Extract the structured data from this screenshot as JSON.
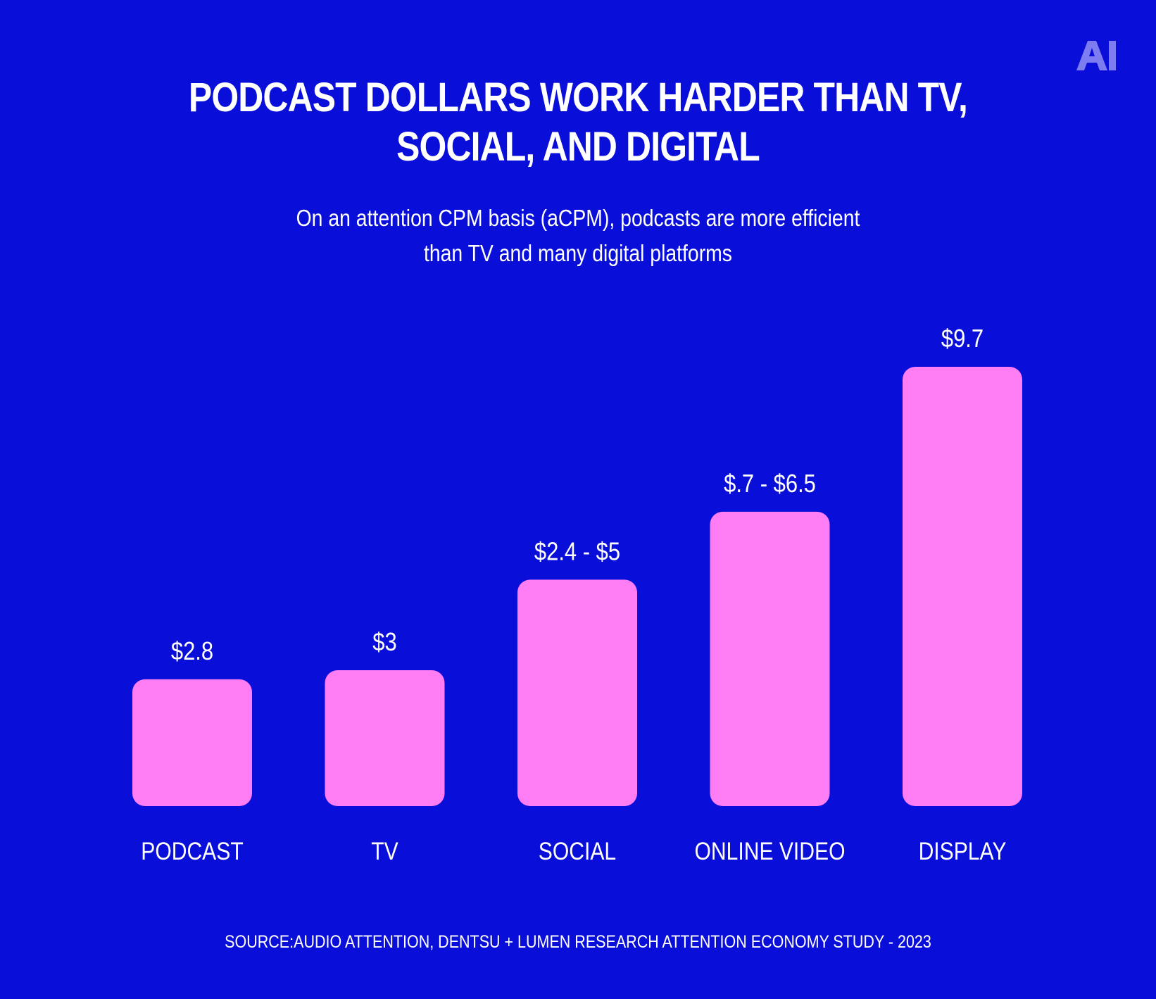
{
  "logo": {
    "text": "AI",
    "color": "#7d7cf0"
  },
  "header": {
    "title_lines": [
      "PODCAST DOLLARS WORK HARDER THAN TV,",
      "SOCIAL, AND DIGITAL"
    ],
    "subtitle_lines": [
      "On an attention CPM basis (aCPM), podcasts are more efficient",
      "than TV and many digital platforms"
    ]
  },
  "footer": {
    "source": "SOURCE:AUDIO ATTENTION, DENTSU + LUMEN RESEARCH ATTENTION ECONOMY STUDY - 2023"
  },
  "colors": {
    "background": "#0a0ed9",
    "bar": "#ff7df4",
    "text": "#ffffff"
  },
  "chart_data": {
    "type": "bar",
    "categories": [
      "PODCAST",
      "TV",
      "SOCIAL",
      "ONLINE VIDEO",
      "DISPLAY"
    ],
    "values": [
      2.8,
      3,
      5,
      6.5,
      9.7
    ],
    "value_labels": [
      "$2.8",
      "$3",
      "$2.4 - $5",
      "$.7 - $6.5",
      "$9.7"
    ],
    "ranges": [
      null,
      null,
      [
        2.4,
        5
      ],
      [
        0.7,
        6.5
      ],
      null
    ],
    "grid": false,
    "legend": "none"
  }
}
